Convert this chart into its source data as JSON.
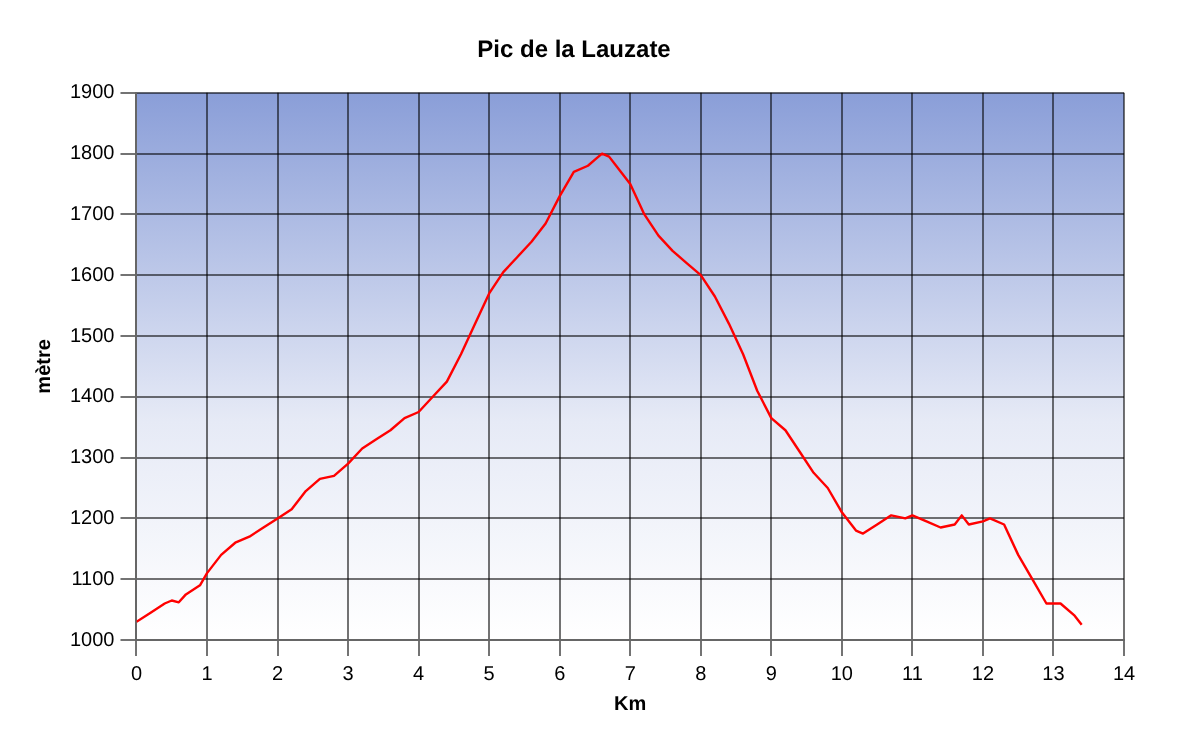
{
  "chart_data": {
    "type": "line",
    "title": "Pic de la Lauzate",
    "xlabel": "Km",
    "ylabel": "mètre",
    "x": [
      0,
      0.2,
      0.4,
      0.5,
      0.6,
      0.7,
      0.9,
      1.0,
      1.2,
      1.4,
      1.6,
      1.8,
      2.0,
      2.2,
      2.4,
      2.6,
      2.8,
      3.0,
      3.2,
      3.4,
      3.6,
      3.8,
      4.0,
      4.2,
      4.4,
      4.6,
      4.8,
      5.0,
      5.2,
      5.4,
      5.6,
      5.8,
      6.0,
      6.2,
      6.4,
      6.5,
      6.6,
      6.7,
      6.8,
      7.0,
      7.2,
      7.4,
      7.6,
      7.8,
      8.0,
      8.2,
      8.4,
      8.6,
      8.8,
      9.0,
      9.2,
      9.4,
      9.6,
      9.8,
      10.0,
      10.2,
      10.3,
      10.5,
      10.7,
      10.9,
      11.0,
      11.2,
      11.4,
      11.6,
      11.7,
      11.8,
      12.0,
      12.1,
      12.3,
      12.5,
      12.7,
      12.9,
      13.1,
      13.3,
      13.4
    ],
    "series": [
      {
        "color": "#ff0000",
        "values": [
          1030,
          1045,
          1060,
          1065,
          1062,
          1075,
          1090,
          1110,
          1140,
          1160,
          1170,
          1185,
          1200,
          1215,
          1245,
          1265,
          1270,
          1290,
          1315,
          1330,
          1345,
          1365,
          1375,
          1400,
          1425,
          1470,
          1520,
          1570,
          1605,
          1630,
          1655,
          1685,
          1730,
          1770,
          1780,
          1790,
          1800,
          1795,
          1780,
          1750,
          1700,
          1665,
          1640,
          1620,
          1600,
          1565,
          1520,
          1470,
          1410,
          1365,
          1345,
          1310,
          1275,
          1250,
          1210,
          1180,
          1175,
          1190,
          1205,
          1200,
          1205,
          1195,
          1185,
          1190,
          1205,
          1190,
          1195,
          1200,
          1190,
          1140,
          1100,
          1060,
          1060,
          1040,
          1025
        ]
      }
    ],
    "xlim": [
      0,
      14
    ],
    "xticks": [
      0,
      1,
      2,
      3,
      4,
      5,
      6,
      7,
      8,
      9,
      10,
      11,
      12,
      13,
      14
    ],
    "ylim": [
      1000,
      1900
    ],
    "yticks": [
      1000,
      1100,
      1200,
      1300,
      1400,
      1500,
      1600,
      1700,
      1800,
      1900
    ],
    "grid": true,
    "legend": false,
    "marker": "none",
    "line_style": "solid"
  }
}
